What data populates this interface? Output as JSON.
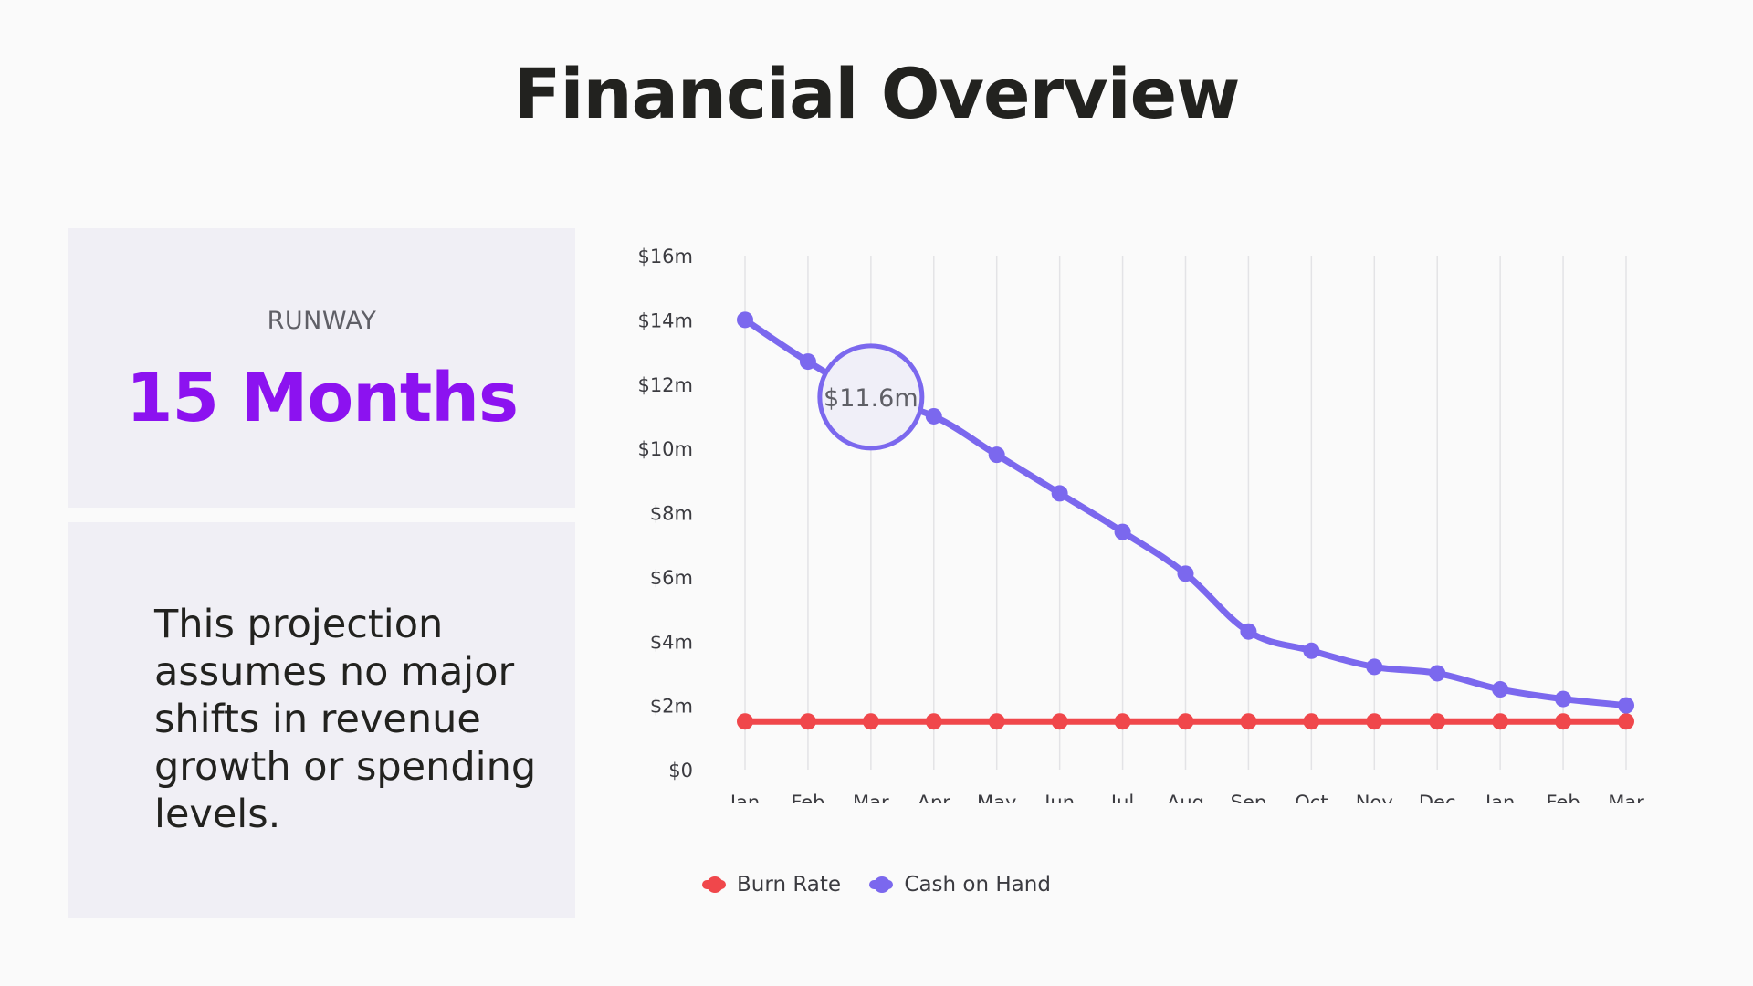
{
  "title": "Financial Overview",
  "runway": {
    "label": "RUNWAY",
    "value": "15 Months"
  },
  "note": "This projection assumes no major shifts in revenue growth or spending levels.",
  "colors": {
    "burn_rate": "#f0474b",
    "cash_on_hand": "#7b68ee",
    "accent": "#8c12f0",
    "card": "#f0eff5"
  },
  "chart_data": {
    "type": "line",
    "categories": [
      "Jan",
      "Feb",
      "Mar",
      "Apr",
      "May",
      "Jun",
      "Jul",
      "Aug",
      "Sep",
      "Oct",
      "Nov",
      "Dec",
      "Jan",
      "Feb",
      "Mar"
    ],
    "series": [
      {
        "name": "Burn Rate",
        "color": "#f0474b",
        "values": [
          1.5,
          1.5,
          1.5,
          1.5,
          1.5,
          1.5,
          1.5,
          1.5,
          1.5,
          1.5,
          1.5,
          1.5,
          1.5,
          1.5,
          1.5
        ]
      },
      {
        "name": "Cash on Hand",
        "color": "#7b68ee",
        "values": [
          14.0,
          12.7,
          11.6,
          11.0,
          9.8,
          8.6,
          7.4,
          6.1,
          4.3,
          3.7,
          3.2,
          3.0,
          2.5,
          2.2,
          2.0
        ]
      }
    ],
    "ylim": [
      0,
      16
    ],
    "yticks": [
      0,
      2,
      4,
      6,
      8,
      10,
      12,
      14,
      16
    ],
    "ytick_labels": [
      "$0",
      "$2m",
      "$4m",
      "$6m",
      "$8m",
      "$10m",
      "$12m",
      "$14m",
      "$16m"
    ],
    "annotation": {
      "series": "Cash on Hand",
      "index": 2,
      "text": "$11.6m"
    },
    "grid": "vertical",
    "legend": "bottom-center"
  }
}
